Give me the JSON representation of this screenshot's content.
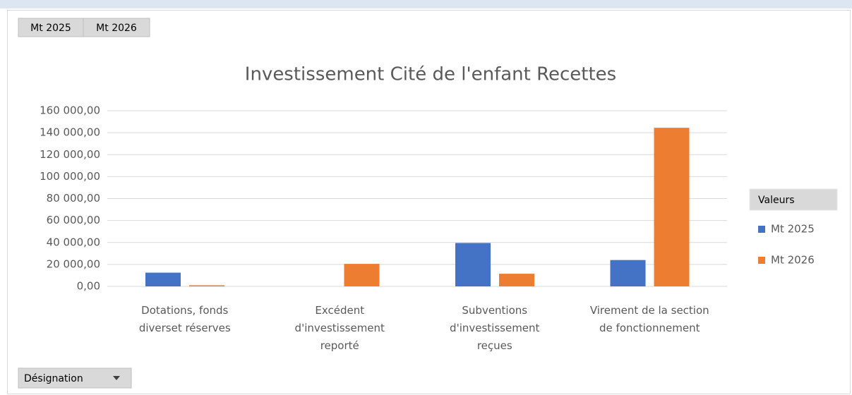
{
  "chart_data": {
    "type": "bar",
    "title": "Investissement Cité de l'enfant Recettes",
    "categories": [
      "Dotations, fonds\ndiverset réserves",
      "Excédent\nd'investissement\nreporté",
      "Subventions\nd'investissement\nreçues",
      "Virement de la section\nde fonctionnement"
    ],
    "series": [
      {
        "name": "Mt 2025",
        "color": "#4472c4",
        "values": [
          12500,
          null,
          39500,
          24000
        ]
      },
      {
        "name": "Mt 2026",
        "color": "#ed7d31",
        "values": [
          1000,
          20500,
          11500,
          144500
        ]
      }
    ],
    "ylim": [
      0,
      160000
    ],
    "yticks": [
      {
        "value": 0,
        "label": "0,00"
      },
      {
        "value": 20000,
        "label": "20 000,00"
      },
      {
        "value": 40000,
        "label": "40 000,00"
      },
      {
        "value": 60000,
        "label": "60 000,00"
      },
      {
        "value": 80000,
        "label": "80 000,00"
      },
      {
        "value": 100000,
        "label": "100 000,00"
      },
      {
        "value": 120000,
        "label": "120 000,00"
      },
      {
        "value": 140000,
        "label": "140 000,00"
      },
      {
        "value": 160000,
        "label": "160 000,00"
      }
    ],
    "grid": true,
    "legend_title": "Valeurs",
    "legend": "right",
    "axis_field": "Désignation"
  }
}
